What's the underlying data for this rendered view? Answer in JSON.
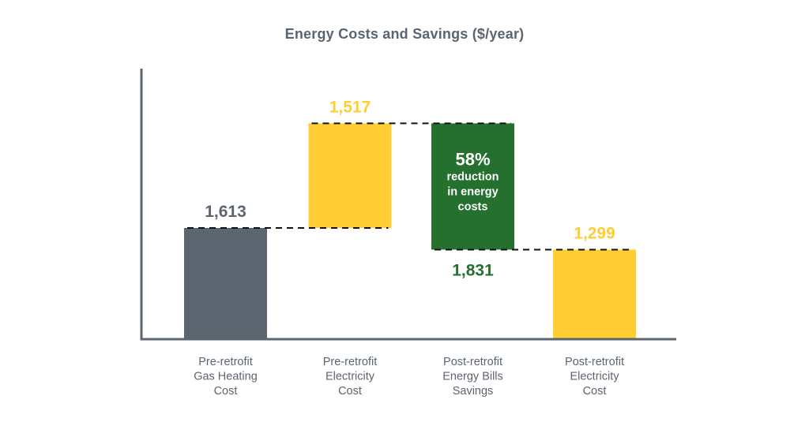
{
  "chart_data": {
    "type": "waterfall",
    "title": "Energy Costs and Savings ($/year)",
    "xlabel": "",
    "ylabel": "",
    "grid": false,
    "legend": "none",
    "categories": [
      [
        "Pre-retrofit",
        "Gas Heating",
        "Cost"
      ],
      [
        "Pre-retrofit",
        "Electricity",
        "Cost"
      ],
      [
        "Post-retrofit",
        "Energy Bills",
        "Savings"
      ],
      [
        "Post-retrofit",
        "Electricity",
        "Cost"
      ]
    ],
    "bars": [
      {
        "name": "Pre-retrofit Gas Heating Cost",
        "value": 1613,
        "base": 0,
        "top": 1613,
        "label": "1,613",
        "color": "#5c6670",
        "label_color": "#5c6670",
        "label_pos": "above"
      },
      {
        "name": "Pre-retrofit Electricity Cost",
        "value": 1517,
        "base": 1613,
        "top": 3130,
        "label": "1,517",
        "color": "#ffcd34",
        "label_color": "#ffcd34",
        "label_pos": "above"
      },
      {
        "name": "Post-retrofit Energy Bills Savings",
        "value": -1831,
        "base": 1299,
        "top": 3130,
        "label": "1,831",
        "color": "#25702f",
        "label_color": "#25702f",
        "label_pos": "below"
      },
      {
        "name": "Post-retrofit Electricity Cost",
        "value": 1299,
        "base": 0,
        "top": 1299,
        "label": "1,299",
        "color": "#ffcd34",
        "label_color": "#ffcd34",
        "label_pos": "above"
      }
    ],
    "annotation": {
      "bar_index": 2,
      "lines": [
        "58%",
        "reduction",
        "in energy",
        "costs"
      ],
      "color": "#ffffff"
    },
    "connectors": "dashed",
    "ylim": [
      0,
      3400
    ]
  },
  "colors": {
    "axis": "#5c6670",
    "title": "#5b6570",
    "connector": "#111111"
  }
}
